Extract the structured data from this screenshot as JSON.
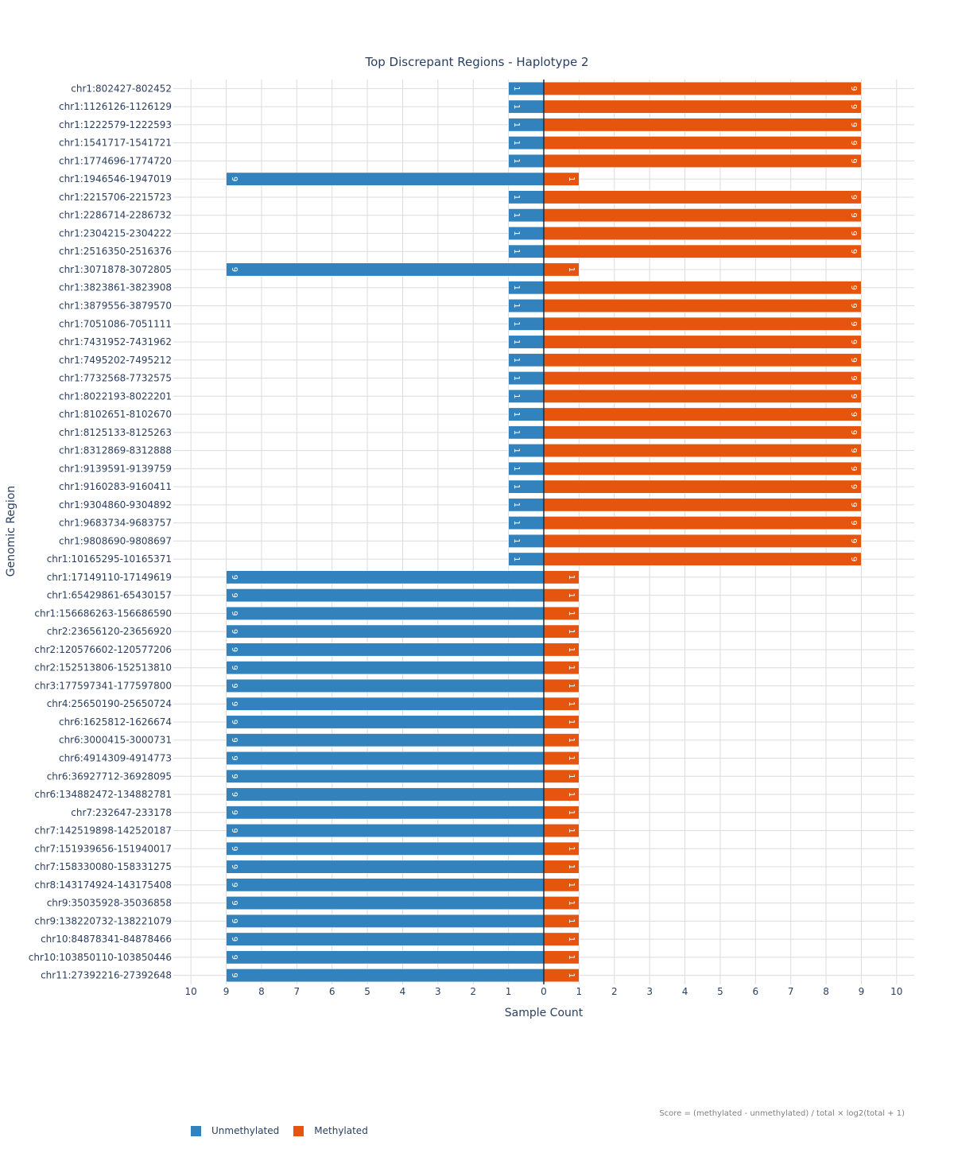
{
  "chart_data": {
    "type": "bar",
    "orientation": "horizontal",
    "layout": "diverging",
    "title": "Top Discrepant Regions - Haplotype 2",
    "xlabel": "Sample Count",
    "ylabel": "Genomic Region",
    "xlim": [
      -10.5,
      10.5
    ],
    "x_tick_values": [
      -10,
      -9,
      -8,
      -7,
      -6,
      -5,
      -4,
      -3,
      -2,
      -1,
      0,
      1,
      2,
      3,
      4,
      5,
      6,
      7,
      8,
      9,
      10
    ],
    "x_tick_labels": [
      "10",
      "9",
      "8",
      "7",
      "6",
      "5",
      "4",
      "3",
      "2",
      "1",
      "0",
      "1",
      "2",
      "3",
      "4",
      "5",
      "6",
      "7",
      "8",
      "9",
      "10"
    ],
    "grid": true,
    "legend_position": "bottom-left",
    "categories": [
      "chr1:802427-802452",
      "chr1:1126126-1126129",
      "chr1:1222579-1222593",
      "chr1:1541717-1541721",
      "chr1:1774696-1774720",
      "chr1:1946546-1947019",
      "chr1:2215706-2215723",
      "chr1:2286714-2286732",
      "chr1:2304215-2304222",
      "chr1:2516350-2516376",
      "chr1:3071878-3072805",
      "chr1:3823861-3823908",
      "chr1:3879556-3879570",
      "chr1:7051086-7051111",
      "chr1:7431952-7431962",
      "chr1:7495202-7495212",
      "chr1:7732568-7732575",
      "chr1:8022193-8022201",
      "chr1:8102651-8102670",
      "chr1:8125133-8125263",
      "chr1:8312869-8312888",
      "chr1:9139591-9139759",
      "chr1:9160283-9160411",
      "chr1:9304860-9304892",
      "chr1:9683734-9683757",
      "chr1:9808690-9808697",
      "chr1:10165295-10165371",
      "chr1:17149110-17149619",
      "chr1:65429861-65430157",
      "chr1:156686263-156686590",
      "chr2:23656120-23656920",
      "chr2:120576602-120577206",
      "chr2:152513806-152513810",
      "chr3:177597341-177597800",
      "chr4:25650190-25650724",
      "chr6:1625812-1626674",
      "chr6:3000415-3000731",
      "chr6:4914309-4914773",
      "chr6:36927712-36928095",
      "chr6:134882472-134882781",
      "chr7:232647-233178",
      "chr7:142519898-142520187",
      "chr7:151939656-151940017",
      "chr7:158330080-158331275",
      "chr8:143174924-143175408",
      "chr9:35035928-35036858",
      "chr9:138220732-138221079",
      "chr10:84878341-84878466",
      "chr10:103850110-103850446",
      "chr11:27392216-27392648"
    ],
    "series": [
      {
        "name": "Unmethylated",
        "color": "#3182bd",
        "direction": "left",
        "values": [
          1,
          1,
          1,
          1,
          1,
          9,
          1,
          1,
          1,
          1,
          9,
          1,
          1,
          1,
          1,
          1,
          1,
          1,
          1,
          1,
          1,
          1,
          1,
          1,
          1,
          1,
          1,
          9,
          9,
          9,
          9,
          9,
          9,
          9,
          9,
          9,
          9,
          9,
          9,
          9,
          9,
          9,
          9,
          9,
          9,
          9,
          9,
          9,
          9,
          9
        ],
        "data_labels": [
          "1",
          "1",
          "1",
          "1",
          "1",
          "9",
          "1",
          "1",
          "1",
          "1",
          "9",
          "1",
          "1",
          "1",
          "1",
          "1",
          "1",
          "1",
          "1",
          "1",
          "1",
          "1",
          "1",
          "1",
          "1",
          "1",
          "1",
          "9",
          "9",
          "9",
          "9",
          "9",
          "9",
          "9",
          "9",
          "9",
          "9",
          "9",
          "9",
          "9",
          "9",
          "9",
          "9",
          "9",
          "9",
          "9",
          "9",
          "9",
          "9",
          "9"
        ]
      },
      {
        "name": "Methylated",
        "color": "#e6550d",
        "direction": "right",
        "values": [
          9,
          9,
          9,
          9,
          9,
          1,
          9,
          9,
          9,
          9,
          1,
          9,
          9,
          9,
          9,
          9,
          9,
          9,
          9,
          9,
          9,
          9,
          9,
          9,
          9,
          9,
          9,
          1,
          1,
          1,
          1,
          1,
          1,
          1,
          1,
          1,
          1,
          1,
          1,
          1,
          1,
          1,
          1,
          1,
          1,
          1,
          1,
          1,
          1,
          1
        ],
        "data_labels": [
          "9",
          "9",
          "9",
          "9",
          "9",
          "1",
          "9",
          "9",
          "9",
          "9",
          "1",
          "9",
          "9",
          "9",
          "9",
          "9",
          "9",
          "9",
          "9",
          "9",
          "9",
          "9",
          "9",
          "9",
          "9",
          "9",
          "9",
          "1",
          "1",
          "1",
          "1",
          "1",
          "1",
          "1",
          "1",
          "1",
          "1",
          "1",
          "1",
          "1",
          "1",
          "1",
          "1",
          "1",
          "1",
          "1",
          "1",
          "1",
          "1",
          "1"
        ]
      }
    ],
    "annotation": "Score = (methylated - unmethylated) / total × log2(total + 1)"
  }
}
